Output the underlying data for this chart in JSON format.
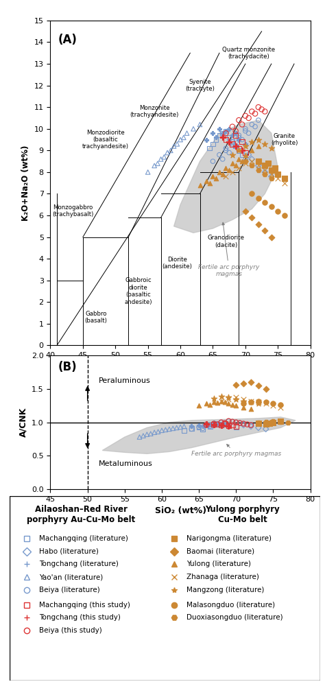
{
  "panel_A": {
    "xlim": [
      40,
      80
    ],
    "ylim": [
      0,
      15
    ],
    "xlabel": "SiO₂ (wt%)",
    "ylabel": "K₂O+Na₂O (wt%)",
    "label": "(A)"
  },
  "panel_B": {
    "xlim": [
      45,
      80
    ],
    "ylim": [
      0.0,
      2.0
    ],
    "xlabel": "SiO₂ (wt%)",
    "ylabel": "A/CNK",
    "label": "(B)"
  },
  "blue_color": "#7799cc",
  "red_color": "#dd3333",
  "orange_color": "#cc8833",
  "gray_fill": "#bbbbbb",
  "legend": {
    "left_title": "Ailaoshan–Red River\nporphyry Au-Cu-Mo belt",
    "right_title": "Yulong porphyry\nCu-Mo belt",
    "left_items": [
      {
        "label": "Machangqing (literature)",
        "marker": "s",
        "color": "#7799cc",
        "filled": false
      },
      {
        "label": "Habo (literature)",
        "marker": "D",
        "color": "#7799cc",
        "filled": false
      },
      {
        "label": "Tongchang (literature)",
        "marker": "+",
        "color": "#7799cc",
        "filled": false
      },
      {
        "label": "Yao'an (literature)",
        "marker": "^",
        "color": "#7799cc",
        "filled": false
      },
      {
        "label": "Beiya (literature)",
        "marker": "o",
        "color": "#7799cc",
        "filled": false
      },
      {
        "label": "Machangqing (this study)",
        "marker": "s",
        "color": "#dd3333",
        "filled": false
      },
      {
        "label": "Tongchang (this study)",
        "marker": "+",
        "color": "#dd3333",
        "filled": false
      },
      {
        "label": "Beiya (this study)",
        "marker": "o",
        "color": "#dd3333",
        "filled": false
      }
    ],
    "right_items": [
      {
        "label": "Narigongma (literature)",
        "marker": "s",
        "color": "#cc8833",
        "filled": true
      },
      {
        "label": "Baomai (literature)",
        "marker": "D",
        "color": "#cc8833",
        "filled": true
      },
      {
        "label": "Yulong (literature)",
        "marker": "^",
        "color": "#cc8833",
        "filled": true
      },
      {
        "label": "Zhanaga (literature)",
        "marker": "x",
        "color": "#cc8833",
        "filled": true
      },
      {
        "label": "Mangzong (literature)",
        "marker": "*",
        "color": "#cc8833",
        "filled": true
      },
      {
        "label": "Malasongduo (literature)",
        "marker": "o",
        "color": "#cc8833",
        "filled": true
      },
      {
        "label": "Duoxiasongduo (literature)",
        "marker": "H",
        "color": "#cc8833",
        "filled": true
      }
    ]
  }
}
